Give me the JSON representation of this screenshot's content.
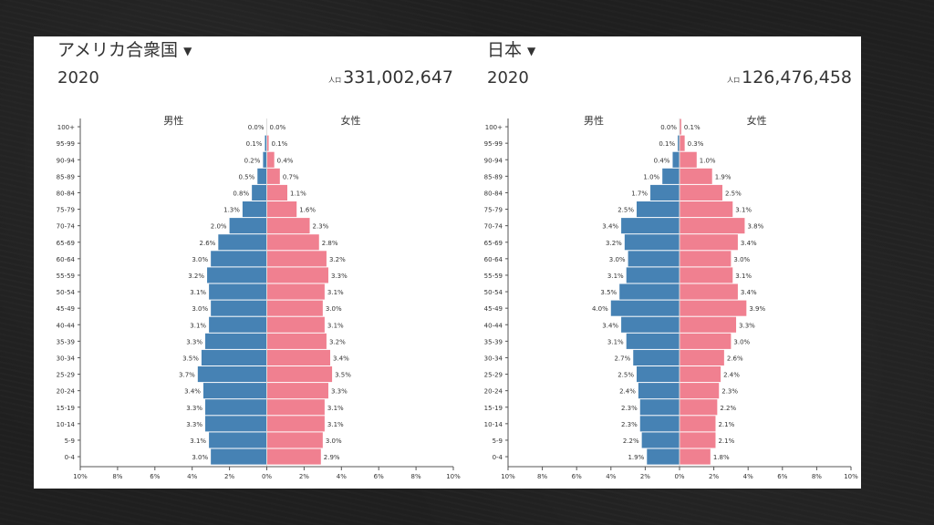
{
  "colors": {
    "male": "#4682b4",
    "female": "#f08090",
    "axis": "#555555",
    "text": "#333333"
  },
  "chart_data": [
    {
      "type": "bar",
      "country": "アメリカ合衆国",
      "year": "2020",
      "population_label": "人口",
      "population": "331,002,647",
      "male_label": "男性",
      "female_label": "女性",
      "xlim": [
        -10,
        10
      ],
      "x_ticks": [
        "10%",
        "8%",
        "6%",
        "4%",
        "2%",
        "0%",
        "2%",
        "4%",
        "6%",
        "8%",
        "10%"
      ],
      "categories": [
        "100+",
        "95-99",
        "90-94",
        "85-89",
        "80-84",
        "75-79",
        "70-74",
        "65-69",
        "60-64",
        "55-59",
        "50-54",
        "45-49",
        "40-44",
        "35-39",
        "30-34",
        "25-29",
        "20-24",
        "15-19",
        "10-14",
        "5-9",
        "0-4"
      ],
      "series": [
        {
          "name": "男性",
          "values": [
            0.0,
            0.1,
            0.2,
            0.5,
            0.8,
            1.3,
            2.0,
            2.6,
            3.0,
            3.2,
            3.1,
            3.0,
            3.1,
            3.3,
            3.5,
            3.7,
            3.4,
            3.3,
            3.3,
            3.1,
            3.0
          ],
          "labels": [
            "0.0%",
            "0.1%",
            "0.2%",
            "0.5%",
            "0.8%",
            "1.3%",
            "2.0%",
            "2.6%",
            "3.0%",
            "3.2%",
            "3.1%",
            "3.0%",
            "3.1%",
            "3.3%",
            "3.5%",
            "3.7%",
            "3.4%",
            "3.3%",
            "3.3%",
            "3.1%",
            "3.0%"
          ]
        },
        {
          "name": "女性",
          "values": [
            0.0,
            0.1,
            0.4,
            0.7,
            1.1,
            1.6,
            2.3,
            2.8,
            3.2,
            3.3,
            3.1,
            3.0,
            3.1,
            3.2,
            3.4,
            3.5,
            3.3,
            3.1,
            3.1,
            3.0,
            2.9
          ],
          "labels": [
            "0.0%",
            "0.1%",
            "0.4%",
            "0.7%",
            "1.1%",
            "1.6%",
            "2.3%",
            "2.8%",
            "3.2%",
            "3.3%",
            "3.1%",
            "3.0%",
            "3.1%",
            "3.2%",
            "3.4%",
            "3.5%",
            "3.3%",
            "3.1%",
            "3.1%",
            "3.0%",
            "2.9%"
          ]
        }
      ]
    },
    {
      "type": "bar",
      "country": "日本",
      "year": "2020",
      "population_label": "人口",
      "population": "126,476,458",
      "male_label": "男性",
      "female_label": "女性",
      "xlim": [
        -10,
        10
      ],
      "x_ticks": [
        "10%",
        "8%",
        "6%",
        "4%",
        "2%",
        "0%",
        "2%",
        "4%",
        "6%",
        "8%",
        "10%"
      ],
      "categories": [
        "100+",
        "95-99",
        "90-94",
        "85-89",
        "80-84",
        "75-79",
        "70-74",
        "65-69",
        "60-64",
        "55-59",
        "50-54",
        "45-49",
        "40-44",
        "35-39",
        "30-34",
        "25-29",
        "20-24",
        "15-19",
        "10-14",
        "5-9",
        "0-4"
      ],
      "series": [
        {
          "name": "男性",
          "values": [
            0.0,
            0.1,
            0.4,
            1.0,
            1.7,
            2.5,
            3.4,
            3.2,
            3.0,
            3.1,
            3.5,
            4.0,
            3.4,
            3.1,
            2.7,
            2.5,
            2.4,
            2.3,
            2.3,
            2.2,
            1.9
          ],
          "labels": [
            "0.0%",
            "0.1%",
            "0.4%",
            "1.0%",
            "1.7%",
            "2.5%",
            "3.4%",
            "3.2%",
            "3.0%",
            "3.1%",
            "3.5%",
            "4.0%",
            "3.4%",
            "3.1%",
            "2.7%",
            "2.5%",
            "2.4%",
            "2.3%",
            "2.3%",
            "2.2%",
            "1.9%"
          ]
        },
        {
          "name": "女性",
          "values": [
            0.1,
            0.3,
            1.0,
            1.9,
            2.5,
            3.1,
            3.8,
            3.4,
            3.0,
            3.1,
            3.4,
            3.9,
            3.3,
            3.0,
            2.6,
            2.4,
            2.3,
            2.2,
            2.1,
            2.1,
            1.8
          ],
          "labels": [
            "0.1%",
            "0.3%",
            "1.0%",
            "1.9%",
            "2.5%",
            "3.1%",
            "3.8%",
            "3.4%",
            "3.0%",
            "3.1%",
            "3.4%",
            "3.9%",
            "3.3%",
            "3.0%",
            "2.6%",
            "2.4%",
            "2.3%",
            "2.2%",
            "2.1%",
            "2.1%",
            "1.8%"
          ]
        }
      ]
    }
  ]
}
